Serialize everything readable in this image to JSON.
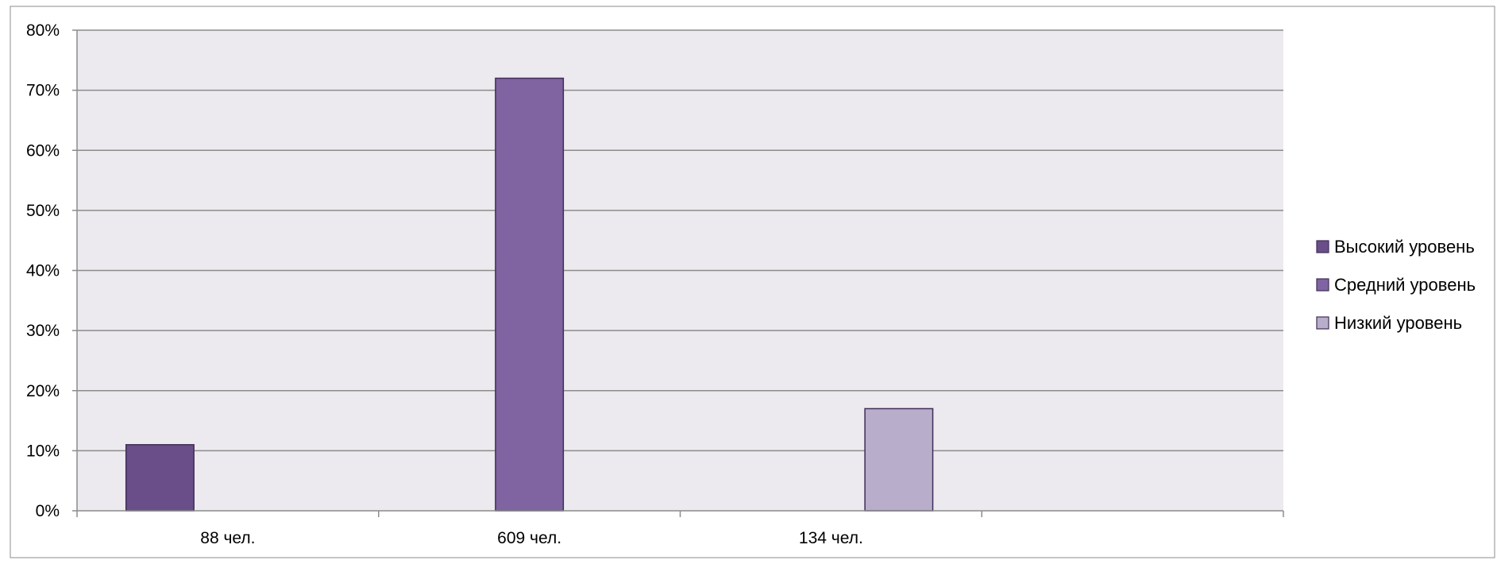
{
  "chart_data": {
    "type": "bar",
    "categories": [
      "88 чел.",
      "609 чел.",
      "134 чел.",
      ""
    ],
    "series": [
      {
        "name": "Высокий уровень",
        "color": "#6a4e89",
        "values": [
          11,
          null,
          null,
          null
        ]
      },
      {
        "name": "Средний уровень",
        "color": "#8064a2",
        "values": [
          null,
          72,
          null,
          null
        ]
      },
      {
        "name": "Низкий уровень",
        "color": "#b8aecb",
        "values": [
          null,
          null,
          17,
          null
        ]
      }
    ],
    "ylim": [
      0,
      80
    ],
    "yticks": [
      0,
      10,
      20,
      30,
      40,
      50,
      60,
      70,
      80
    ],
    "y_tick_labels": [
      "0%",
      "10%",
      "20%",
      "30%",
      "40%",
      "50%",
      "60%",
      "70%",
      "80%"
    ],
    "grid": true,
    "legend_position": "right",
    "colors": {
      "plot_background": "#ece9ef",
      "gridline": "#8c8c8c",
      "bar_outline": "#3f2d56",
      "frame": "#8c8c8c"
    }
  }
}
